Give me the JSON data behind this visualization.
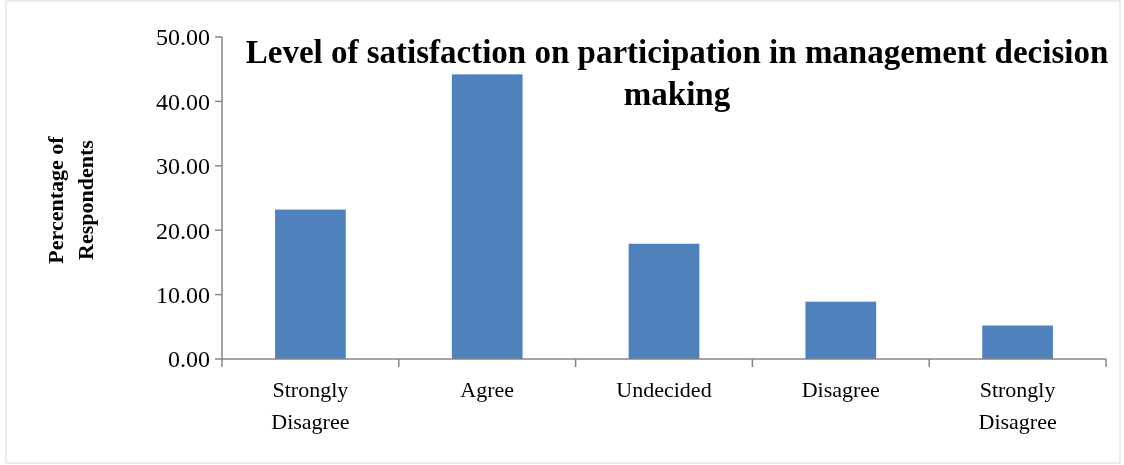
{
  "chart_data": {
    "type": "bar",
    "title": "Level of satisfaction on participation in management decision making",
    "ylabel": "Percentage of Respondents",
    "categories": [
      "Strongly Disagree",
      "Agree",
      "Undecided",
      "Disagree",
      "Strongly Disagree"
    ],
    "values": [
      23.2,
      44.2,
      17.9,
      8.9,
      5.2
    ],
    "color": "#4f81bd",
    "ylim": [
      0,
      50
    ],
    "yticks": [
      {
        "value": 0,
        "label": "0.00"
      },
      {
        "value": 10,
        "label": "10.00"
      },
      {
        "value": 20,
        "label": "20.00"
      },
      {
        "value": 30,
        "label": "30.00"
      },
      {
        "value": 40,
        "label": "40.00"
      },
      {
        "value": 50,
        "label": "50.00"
      }
    ]
  }
}
